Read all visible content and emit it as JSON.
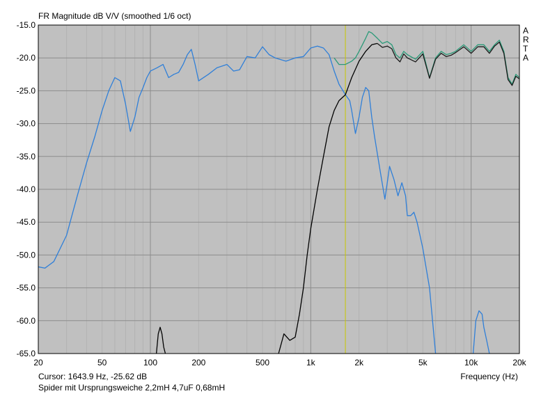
{
  "chart_data": {
    "type": "line",
    "title": "FR Magnitude dB V/V (smoothed 1/6 oct)",
    "xlabel": "Frequency (Hz)",
    "ylabel": "",
    "x_scale": "log",
    "xlim": [
      20,
      20000
    ],
    "ylim": [
      -65,
      -15
    ],
    "y_ticks": [
      -15,
      -20,
      -25,
      -30,
      -35,
      -40,
      -45,
      -50,
      -55,
      -60,
      -65
    ],
    "y_tick_labels": [
      "-15.0",
      "-20.0",
      "-25.0",
      "-30.0",
      "-35.0",
      "-40.0",
      "-45.0",
      "-50.0",
      "-55.0",
      "-60.0",
      "-65.0"
    ],
    "x_ticks": [
      20,
      50,
      100,
      200,
      500,
      1000,
      2000,
      5000,
      10000,
      20000
    ],
    "x_tick_labels": [
      "20",
      "50",
      "100",
      "200",
      "500",
      "1k",
      "2k",
      "5k",
      "10k",
      "20k"
    ],
    "grid": true,
    "plot_bg": "#c0c0c0",
    "cursor": {
      "x": 1643.9,
      "color": "#c8c800"
    },
    "series": [
      {
        "color": "#2f7fd8",
        "x": [
          20,
          22,
          25,
          30,
          35,
          40,
          45,
          50,
          55,
          60,
          65,
          70,
          75,
          80,
          85,
          90,
          95,
          100,
          110,
          120,
          130,
          140,
          150,
          160,
          170,
          180,
          190,
          200,
          230,
          260,
          300,
          330,
          360,
          400,
          450,
          500,
          550,
          600,
          700,
          800,
          900,
          1000,
          1100,
          1200,
          1300,
          1400,
          1500,
          1643.9,
          1750,
          1800,
          1900,
          2000,
          2100,
          2200,
          2300,
          2400,
          2500,
          2700,
          2900,
          3000,
          3100,
          3300,
          3500,
          3700,
          3900,
          4000,
          4200,
          4400,
          4600,
          4800,
          5000,
          5500,
          6000
        ],
        "y": [
          -51.8,
          -52,
          -51,
          -47,
          -41,
          -36,
          -32,
          -28,
          -25,
          -23,
          -23.5,
          -27,
          -31.2,
          -29,
          -26,
          -24.5,
          -23,
          -22,
          -21.5,
          -21,
          -23,
          -22.5,
          -22.2,
          -21,
          -19.5,
          -18.7,
          -21,
          -23.5,
          -22.5,
          -21.5,
          -21,
          -22,
          -21.8,
          -19.8,
          -20,
          -18.3,
          -19.5,
          -20,
          -20.5,
          -20,
          -19.8,
          -18.5,
          -18.2,
          -18.5,
          -19.5,
          -22,
          -24,
          -25.6,
          -26.5,
          -28,
          -31.5,
          -29,
          -26,
          -24.5,
          -25,
          -29,
          -32,
          -37,
          -41.5,
          -39,
          -36.5,
          -38.5,
          -41,
          -39,
          -41,
          -44,
          -44,
          -43.5,
          -45,
          -47,
          -49,
          -55,
          -65
        ]
      },
      {
        "color": "#2f7fd8",
        "x": [
          10300,
          10700,
          11200,
          11700,
          12000,
          12500,
          13000
        ],
        "y": [
          -65,
          -60,
          -58.5,
          -59,
          -61,
          -63,
          -65
        ]
      },
      {
        "color": "#000000",
        "x": [
          109,
          112,
          115,
          118,
          121,
          124
        ],
        "y": [
          -65,
          -62,
          -61,
          -62,
          -64,
          -65
        ]
      },
      {
        "color": "#000000",
        "x": [
          630,
          680,
          740,
          800,
          850,
          900,
          950,
          1000,
          1100,
          1200,
          1300,
          1400,
          1500,
          1643.9,
          1800,
          2000,
          2200,
          2400,
          2600
        ],
        "y": [
          -65,
          -62,
          -63,
          -62.5,
          -59,
          -55,
          -50,
          -46,
          -40,
          -35,
          -30.5,
          -28,
          -26.5,
          -25.6,
          -23,
          -20.5,
          -19,
          -18,
          -17.8
        ]
      },
      {
        "color": "#2a9a78",
        "x": [
          1400,
          1500,
          1643.9,
          1800,
          1900,
          2000,
          2100,
          2200,
          2300,
          2400,
          2600,
          2800,
          3000,
          3200,
          3400,
          3600,
          3800,
          4000,
          4500,
          5000,
          5500,
          6000,
          6500,
          7000,
          7500,
          8000,
          9000,
          10000,
          11000,
          12000,
          13000,
          14000,
          15000,
          16000,
          17000,
          18000,
          19000,
          20000
        ],
        "y": [
          -20,
          -21,
          -21,
          -20.5,
          -20,
          -19,
          -18,
          -17,
          -16,
          -16.2,
          -17,
          -17.8,
          -17.5,
          -18,
          -19.5,
          -20,
          -19,
          -19.5,
          -20.2,
          -19,
          -23,
          -20,
          -19,
          -19.5,
          -19.3,
          -19,
          -18,
          -19,
          -18,
          -18,
          -19,
          -18,
          -17.3,
          -19,
          -23,
          -24,
          -22.5,
          -23
        ]
      },
      {
        "color": "#1a1a1a",
        "x": [
          2600,
          2800,
          3000,
          3200,
          3400,
          3600,
          3800,
          4000,
          4500,
          5000,
          5500,
          6000,
          6500,
          7000,
          7500,
          8000,
          9000,
          10000,
          11000,
          12000,
          13000,
          14000,
          15000,
          16000,
          17000,
          18000,
          19000,
          20000
        ],
        "y": [
          -17.8,
          -18.4,
          -18.2,
          -18.6,
          -20,
          -20.6,
          -19.4,
          -20,
          -20.6,
          -19.4,
          -23.1,
          -20.2,
          -19.3,
          -19.8,
          -19.6,
          -19.2,
          -18.3,
          -19.3,
          -18.3,
          -18.3,
          -19.3,
          -18.2,
          -17.6,
          -19.3,
          -23.3,
          -24.2,
          -22.8,
          -23.2
        ]
      }
    ]
  },
  "title": "FR Magnitude dB V/V (smoothed 1/6 oct)",
  "cursor_readout": "Cursor: 1643.9 Hz, -25.62 dB",
  "caption": "Spider mit Ursprungsweiche 2,2mH 4,7uF 0,68mH",
  "xlabel": "Frequency (Hz)",
  "watermark": [
    "A",
    "R",
    "T",
    "A"
  ]
}
